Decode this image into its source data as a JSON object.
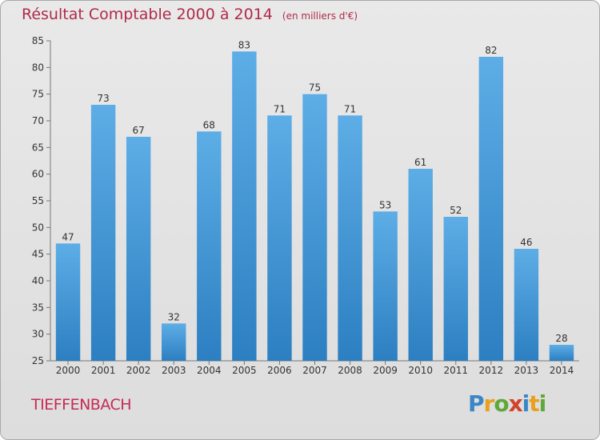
{
  "chart_data": {
    "type": "bar",
    "title": "Résultat Comptable 2000 à 2014",
    "subtitle": "(en milliers d'€)",
    "categories": [
      "2000",
      "2001",
      "2002",
      "2003",
      "2004",
      "2005",
      "2006",
      "2007",
      "2008",
      "2009",
      "2010",
      "2011",
      "2012",
      "2013",
      "2014"
    ],
    "values": [
      47,
      73,
      67,
      32,
      68,
      83,
      71,
      75,
      71,
      53,
      61,
      52,
      82,
      46,
      28
    ],
    "ylim": [
      25,
      85
    ],
    "yticks": [
      25,
      30,
      35,
      40,
      45,
      50,
      55,
      60,
      65,
      70,
      75,
      80,
      85
    ],
    "xlabel": "",
    "ylabel": "",
    "grid": false,
    "legend": "none",
    "colors": {
      "bar_light": "#5dade6",
      "bar_dark": "#2c7fc1",
      "title": "#b12a4a"
    }
  },
  "footer": {
    "commune": "TIEFFENBACH",
    "brand_letters": [
      {
        "char": "P",
        "color": "#3a86c8"
      },
      {
        "char": "r",
        "color": "#e8a11c"
      },
      {
        "char": "o",
        "color": "#5fa83a"
      },
      {
        "char": "x",
        "color": "#d3422b"
      },
      {
        "char": "i",
        "color": "#3a86c8"
      },
      {
        "char": "t",
        "color": "#e8a11c"
      },
      {
        "char": "i",
        "color": "#5fa83a"
      }
    ]
  }
}
